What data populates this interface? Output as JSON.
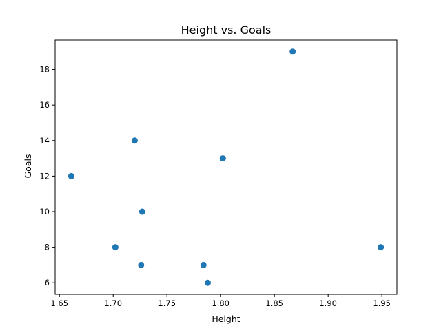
{
  "chart_data": {
    "type": "scatter",
    "title": "Height vs. Goals",
    "xlabel": "Height",
    "ylabel": "Goals",
    "xlim": [
      1.646,
      1.964
    ],
    "ylim": [
      5.35,
      19.65
    ],
    "xticks": [
      "1.65",
      "1.70",
      "1.75",
      "1.80",
      "1.85",
      "1.90",
      "1.95"
    ],
    "yticks": [
      "6",
      "8",
      "10",
      "12",
      "14",
      "16",
      "18"
    ],
    "grid": false,
    "points": [
      {
        "x": 1.661,
        "y": 12
      },
      {
        "x": 1.702,
        "y": 8
      },
      {
        "x": 1.72,
        "y": 14
      },
      {
        "x": 1.726,
        "y": 7
      },
      {
        "x": 1.727,
        "y": 10
      },
      {
        "x": 1.784,
        "y": 7
      },
      {
        "x": 1.788,
        "y": 6
      },
      {
        "x": 1.802,
        "y": 13
      },
      {
        "x": 1.867,
        "y": 19
      },
      {
        "x": 1.949,
        "y": 8
      }
    ],
    "marker_color": "#1f77b4"
  }
}
